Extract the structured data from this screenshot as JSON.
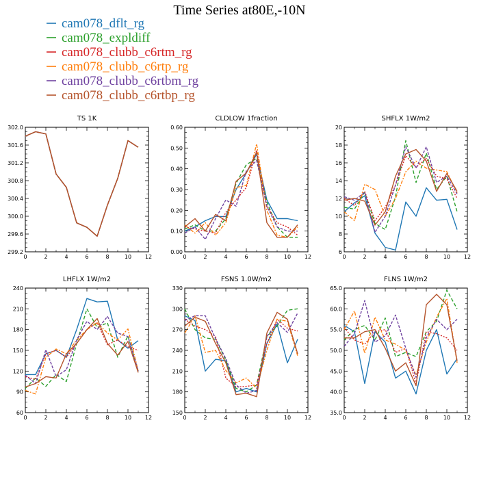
{
  "figure_title": "Time Series at80E,-10N",
  "legend": [
    {
      "label": "cam078_dflt_rg",
      "color": "#1f77b4"
    },
    {
      "label": "cam078_expldiff",
      "color": "#2ca02c"
    },
    {
      "label": "cam078_clubb_c6rtm_rg",
      "color": "#d62728"
    },
    {
      "label": "cam078_clubb_c6rtp_rg",
      "color": "#ff7f0e"
    },
    {
      "label": "cam078_clubb_c6rtbm_rg",
      "color": "#7043a0"
    },
    {
      "label": "cam078_clubb_c6rtbp_rg",
      "color": "#b5542c"
    }
  ],
  "chart_data": [
    {
      "type": "line",
      "title": "TS   1K",
      "x": [
        0,
        1,
        2,
        3,
        4,
        5,
        6,
        7,
        8,
        9,
        10,
        11
      ],
      "xlim": [
        0,
        12
      ],
      "xticks": [
        0,
        2,
        4,
        6,
        8,
        10,
        12
      ],
      "ylim": [
        299.2,
        302.0
      ],
      "yticks": [
        "299.2",
        "299.6",
        "300.0",
        "300.4",
        "300.8",
        "301.2",
        "301.6",
        "302.0"
      ],
      "series": [
        {
          "name": "cam078_dflt_rg",
          "values": [
            301.8,
            301.9,
            301.85,
            300.95,
            300.65,
            299.85,
            299.75,
            299.55,
            300.25,
            300.85,
            301.7,
            301.55
          ]
        },
        {
          "name": "cam078_expldiff",
          "values": [
            301.8,
            301.9,
            301.85,
            300.95,
            300.65,
            299.85,
            299.75,
            299.55,
            300.25,
            300.85,
            301.7,
            301.55
          ]
        },
        {
          "name": "cam078_clubb_c6rtm_rg",
          "values": [
            301.8,
            301.9,
            301.85,
            300.95,
            300.65,
            299.85,
            299.75,
            299.55,
            300.25,
            300.85,
            301.7,
            301.55
          ]
        },
        {
          "name": "cam078_clubb_c6rtp_rg",
          "values": [
            301.8,
            301.9,
            301.85,
            300.95,
            300.65,
            299.85,
            299.75,
            299.55,
            300.25,
            300.85,
            301.7,
            301.55
          ]
        },
        {
          "name": "cam078_clubb_c6rtbm_rg",
          "values": [
            301.8,
            301.9,
            301.85,
            300.95,
            300.65,
            299.85,
            299.75,
            299.55,
            300.25,
            300.85,
            301.7,
            301.55
          ]
        },
        {
          "name": "cam078_clubb_c6rtbp_rg",
          "values": [
            301.8,
            301.9,
            301.85,
            300.95,
            300.65,
            299.85,
            299.75,
            299.55,
            300.25,
            300.85,
            301.7,
            301.55
          ]
        }
      ]
    },
    {
      "type": "line",
      "title": "CLDLOW   1fraction",
      "x": [
        0,
        1,
        2,
        3,
        4,
        5,
        6,
        7,
        8,
        9,
        10,
        11
      ],
      "xlim": [
        0,
        12
      ],
      "xticks": [
        0,
        2,
        4,
        6,
        8,
        10,
        12
      ],
      "ylim": [
        0,
        0.6
      ],
      "yticks": [
        "0.00",
        "0.10",
        "0.20",
        "0.30",
        "0.40",
        "0.50",
        "0.60"
      ],
      "series": [
        {
          "name": "cam078_dflt_rg",
          "values": [
            0.1,
            0.12,
            0.15,
            0.17,
            0.17,
            0.3,
            0.38,
            0.47,
            0.25,
            0.16,
            0.16,
            0.15
          ]
        },
        {
          "name": "cam078_expldiff",
          "values": [
            0.11,
            0.13,
            0.1,
            0.1,
            0.16,
            0.33,
            0.42,
            0.45,
            0.24,
            0.12,
            0.07,
            0.07
          ]
        },
        {
          "name": "cam078_clubb_c6rtm_rg",
          "values": [
            0.12,
            0.11,
            0.1,
            0.09,
            0.19,
            0.25,
            0.31,
            0.49,
            0.22,
            0.14,
            0.12,
            0.08
          ]
        },
        {
          "name": "cam078_clubb_c6rtp_rg",
          "values": [
            0.13,
            0.09,
            0.14,
            0.08,
            0.14,
            0.31,
            0.32,
            0.52,
            0.2,
            0.08,
            0.07,
            0.12
          ]
        },
        {
          "name": "cam078_clubb_c6rtbm_rg",
          "values": [
            0.09,
            0.12,
            0.06,
            0.16,
            0.25,
            0.22,
            0.39,
            0.44,
            0.22,
            0.12,
            0.1,
            0.1
          ]
        },
        {
          "name": "cam078_clubb_c6rtbp_rg",
          "values": [
            0.12,
            0.16,
            0.1,
            0.18,
            0.15,
            0.34,
            0.38,
            0.48,
            0.14,
            0.07,
            0.07,
            0.13
          ]
        }
      ]
    },
    {
      "type": "line",
      "title": "SHFLX   1W/m2",
      "x": [
        0,
        1,
        2,
        3,
        4,
        5,
        6,
        7,
        8,
        9,
        10,
        11
      ],
      "xlim": [
        0,
        12
      ],
      "xticks": [
        0,
        2,
        4,
        6,
        8,
        10,
        12
      ],
      "ylim": [
        6,
        20
      ],
      "yticks": [
        "6",
        "8",
        "10",
        "12",
        "14",
        "16",
        "18",
        "20"
      ],
      "series": [
        {
          "name": "cam078_dflt_rg",
          "values": [
            10.5,
            11.5,
            12.3,
            8.1,
            6.5,
            6.2,
            11.6,
            10,
            13.2,
            11.8,
            11.9,
            8.5
          ]
        },
        {
          "name": "cam078_expldiff",
          "values": [
            11,
            10.8,
            12.7,
            9.2,
            8.5,
            12.2,
            18.5,
            13.8,
            17.1,
            13,
            14.5,
            10.5
          ]
        },
        {
          "name": "cam078_clubb_c6rtm_rg",
          "values": [
            12,
            11.2,
            12.8,
            9.5,
            11,
            13.5,
            16.8,
            15.5,
            16.5,
            14.5,
            14.2,
            12
          ]
        },
        {
          "name": "cam078_clubb_c6rtp_rg",
          "values": [
            10.5,
            9.5,
            13.6,
            13,
            10,
            12,
            15,
            16.2,
            15.4,
            15.2,
            15,
            12.6
          ]
        },
        {
          "name": "cam078_clubb_c6rtbm_rg",
          "values": [
            12.2,
            11.8,
            12.7,
            8.2,
            10,
            13.5,
            17.8,
            15.4,
            17.8,
            13.8,
            14.5,
            12.5
          ]
        },
        {
          "name": "cam078_clubb_c6rtbp_rg",
          "values": [
            11.8,
            12,
            11.7,
            9,
            10.5,
            14.5,
            17,
            17.5,
            16.2,
            12.8,
            14.8,
            12.8
          ]
        }
      ]
    },
    {
      "type": "line",
      "title": "LHFLX   1W/m2",
      "x": [
        0,
        1,
        2,
        3,
        4,
        5,
        6,
        7,
        8,
        9,
        10,
        11
      ],
      "xlim": [
        0,
        12
      ],
      "xticks": [
        0,
        2,
        4,
        6,
        8,
        10,
        12
      ],
      "ylim": [
        60,
        240
      ],
      "yticks": [
        "60",
        "90",
        "120",
        "150",
        "180",
        "210",
        "240"
      ],
      "series": [
        {
          "name": "cam078_dflt_rg",
          "values": [
            115,
            115,
            145,
            150,
            140,
            180,
            225,
            220,
            221,
            165,
            153,
            164
          ]
        },
        {
          "name": "cam078_expldiff",
          "values": [
            95,
            110,
            98,
            115,
            105,
            160,
            210,
            183,
            190,
            140,
            171,
            120
          ]
        },
        {
          "name": "cam078_clubb_c6rtm_rg",
          "values": [
            112,
            108,
            145,
            150,
            140,
            160,
            180,
            190,
            158,
            165,
            155,
            150
          ]
        },
        {
          "name": "cam078_clubb_c6rtp_rg",
          "values": [
            92,
            87,
            140,
            152,
            145,
            165,
            180,
            190,
            175,
            165,
            181,
            120
          ]
        },
        {
          "name": "cam078_clubb_c6rtbm_rg",
          "values": [
            114,
            102,
            151,
            112,
            122,
            165,
            192,
            180,
            199,
            175,
            170,
            120
          ]
        },
        {
          "name": "cam078_clubb_c6rtbp_rg",
          "values": [
            97,
            102,
            112,
            110,
            145,
            160,
            180,
            196,
            160,
            143,
            163,
            118
          ]
        }
      ]
    },
    {
      "type": "line",
      "title": "FSNS   1.0W/m2",
      "x": [
        0,
        1,
        2,
        3,
        4,
        5,
        6,
        7,
        8,
        9,
        10,
        11
      ],
      "xlim": [
        0,
        12
      ],
      "xticks": [
        0,
        2,
        4,
        6,
        8,
        10,
        12
      ],
      "ylim": [
        150,
        330
      ],
      "yticks": [
        "150",
        "180",
        "210",
        "240",
        "270",
        "300",
        "330"
      ],
      "series": [
        {
          "name": "cam078_dflt_rg",
          "values": [
            290,
            283,
            210,
            227,
            225,
            180,
            185,
            180,
            250,
            278,
            222,
            256
          ]
        },
        {
          "name": "cam078_expldiff",
          "values": [
            300,
            270,
            258,
            256,
            226,
            185,
            180,
            190,
            260,
            275,
            298,
            300
          ]
        },
        {
          "name": "cam078_clubb_c6rtm_rg",
          "values": [
            285,
            275,
            270,
            260,
            200,
            187,
            188,
            190,
            250,
            285,
            272,
            268
          ]
        },
        {
          "name": "cam078_clubb_c6rtp_rg",
          "values": [
            265,
            290,
            237,
            240,
            211,
            193,
            200,
            185,
            240,
            285,
            282,
            232
          ]
        },
        {
          "name": "cam078_clubb_c6rtbm_rg",
          "values": [
            283,
            290,
            290,
            257,
            228,
            190,
            178,
            182,
            260,
            280,
            266,
            294
          ]
        },
        {
          "name": "cam078_clubb_c6rtbp_rg",
          "values": [
            275,
            288,
            282,
            250,
            222,
            176,
            178,
            173,
            265,
            295,
            285,
            235
          ]
        }
      ]
    },
    {
      "type": "line",
      "title": "FLNS   1W/m2",
      "x": [
        0,
        1,
        2,
        3,
        4,
        5,
        6,
        7,
        8,
        9,
        10,
        11
      ],
      "xlim": [
        0,
        12
      ],
      "xticks": [
        0,
        2,
        4,
        6,
        8,
        10,
        12
      ],
      "ylim": [
        35,
        65
      ],
      "yticks": [
        "35.0",
        "40.0",
        "45.0",
        "50.0",
        "55.0",
        "60.0",
        "65.0"
      ],
      "series": [
        {
          "name": "cam078_dflt_rg",
          "values": [
            56,
            54.5,
            42,
            54.5,
            52,
            43.3,
            45,
            39.5,
            50,
            55,
            44.3,
            48
          ]
        },
        {
          "name": "cam078_expldiff",
          "values": [
            52.5,
            55,
            56,
            52.5,
            57.8,
            48.5,
            49.5,
            48.5,
            54.5,
            57,
            64.5,
            60
          ]
        },
        {
          "name": "cam078_clubb_c6rtm_rg",
          "values": [
            55.5,
            52.5,
            51.5,
            54.5,
            55,
            49.5,
            50.5,
            42,
            54.5,
            54,
            53,
            50
          ]
        },
        {
          "name": "cam078_clubb_c6rtp_rg",
          "values": [
            55,
            59.5,
            49.3,
            58,
            52.5,
            51.5,
            50,
            44,
            52,
            58,
            62.5,
            47
          ]
        },
        {
          "name": "cam078_clubb_c6rtbm_rg",
          "values": [
            51,
            54,
            62,
            52,
            53.5,
            58.5,
            50.5,
            43.5,
            53,
            57.5,
            55,
            57.5
          ]
        },
        {
          "name": "cam078_clubb_c6rtbp_rg",
          "values": [
            53,
            53,
            54.5,
            55,
            50.5,
            45,
            47,
            41.5,
            61,
            63.5,
            61,
            47.5
          ]
        }
      ]
    }
  ]
}
